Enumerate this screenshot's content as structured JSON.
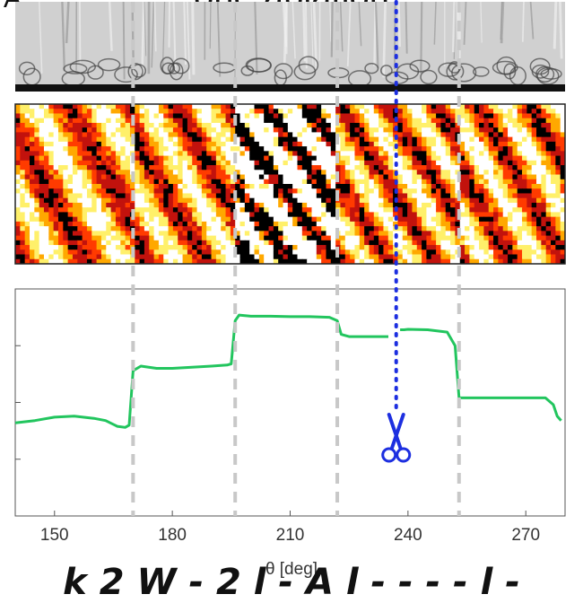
{
  "header": {
    "title": "one ablation",
    "mark": "A"
  },
  "caption": "k 2 W - 2 l - A l - - - - l -",
  "chart_data": {
    "type": "line",
    "xlabel": "θ [deg]",
    "xlim": [
      140,
      280
    ],
    "ylim": [
      0,
      1
    ],
    "xticks": [
      150,
      180,
      210,
      240,
      270
    ],
    "dashed_boundaries": [
      170,
      196,
      222,
      253
    ],
    "ablation_line_x": 237,
    "series": [
      {
        "color": "#22c55e",
        "x": [
          140,
          145,
          150,
          155,
          160,
          163,
          166,
          168,
          169,
          170,
          172,
          176,
          180,
          185,
          190,
          194,
          195,
          196,
          197,
          200,
          205,
          210,
          215,
          220,
          222,
          223,
          225,
          230,
          234,
          235,
          236,
          237,
          238,
          239,
          240,
          245,
          250,
          252,
          253,
          255,
          260,
          265,
          270,
          275,
          277,
          278,
          279
        ],
        "y": [
          0.41,
          0.42,
          0.435,
          0.44,
          0.43,
          0.42,
          0.395,
          0.39,
          0.4,
          0.64,
          0.66,
          0.65,
          0.65,
          0.655,
          0.66,
          0.665,
          0.67,
          0.86,
          0.885,
          0.88,
          0.88,
          0.878,
          0.878,
          0.875,
          0.86,
          0.8,
          0.79,
          0.79,
          0.79,
          0.79,
          null,
          null,
          0.82,
          0.82,
          0.822,
          0.82,
          0.81,
          0.75,
          0.52,
          0.52,
          0.52,
          0.52,
          0.52,
          0.52,
          0.49,
          0.44,
          0.42
        ]
      }
    ]
  },
  "kymograph": {
    "colors": [
      "#000000",
      "#c2120d",
      "#ff3b00",
      "#ffa800",
      "#fff06a",
      "#ffffff"
    ]
  },
  "icons": {
    "scissors": "scissors-icon"
  }
}
